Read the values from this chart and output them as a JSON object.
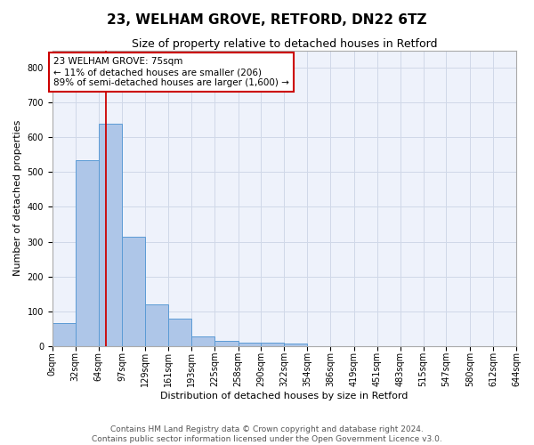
{
  "title": "23, WELHAM GROVE, RETFORD, DN22 6TZ",
  "subtitle": "Size of property relative to detached houses in Retford",
  "xlabel": "Distribution of detached houses by size in Retford",
  "ylabel": "Number of detached properties",
  "bin_edges": [
    0,
    32,
    64,
    97,
    129,
    161,
    193,
    225,
    258,
    290,
    322,
    354,
    386,
    419,
    451,
    483,
    515,
    547,
    580,
    612,
    644
  ],
  "bar_heights": [
    65,
    535,
    640,
    315,
    120,
    78,
    28,
    15,
    10,
    10,
    8,
    0,
    0,
    0,
    0,
    0,
    0,
    0,
    0,
    0
  ],
  "bar_color": "#aec6e8",
  "bar_edge_color": "#5b9bd5",
  "grid_color": "#d0d8e8",
  "bg_color": "#eef2fb",
  "vline_x": 75,
  "vline_color": "#cc0000",
  "annotation_box_color": "#cc0000",
  "annotation_text": "23 WELHAM GROVE: 75sqm\n← 11% of detached houses are smaller (206)\n89% of semi-detached houses are larger (1,600) →",
  "ylim": [
    0,
    850
  ],
  "yticks": [
    0,
    100,
    200,
    300,
    400,
    500,
    600,
    700,
    800
  ],
  "footer_line1": "Contains HM Land Registry data © Crown copyright and database right 2024.",
  "footer_line2": "Contains public sector information licensed under the Open Government Licence v3.0.",
  "title_fontsize": 11,
  "subtitle_fontsize": 9,
  "axis_label_fontsize": 8,
  "tick_fontsize": 7,
  "annotation_fontsize": 7.5,
  "footer_fontsize": 6.5
}
